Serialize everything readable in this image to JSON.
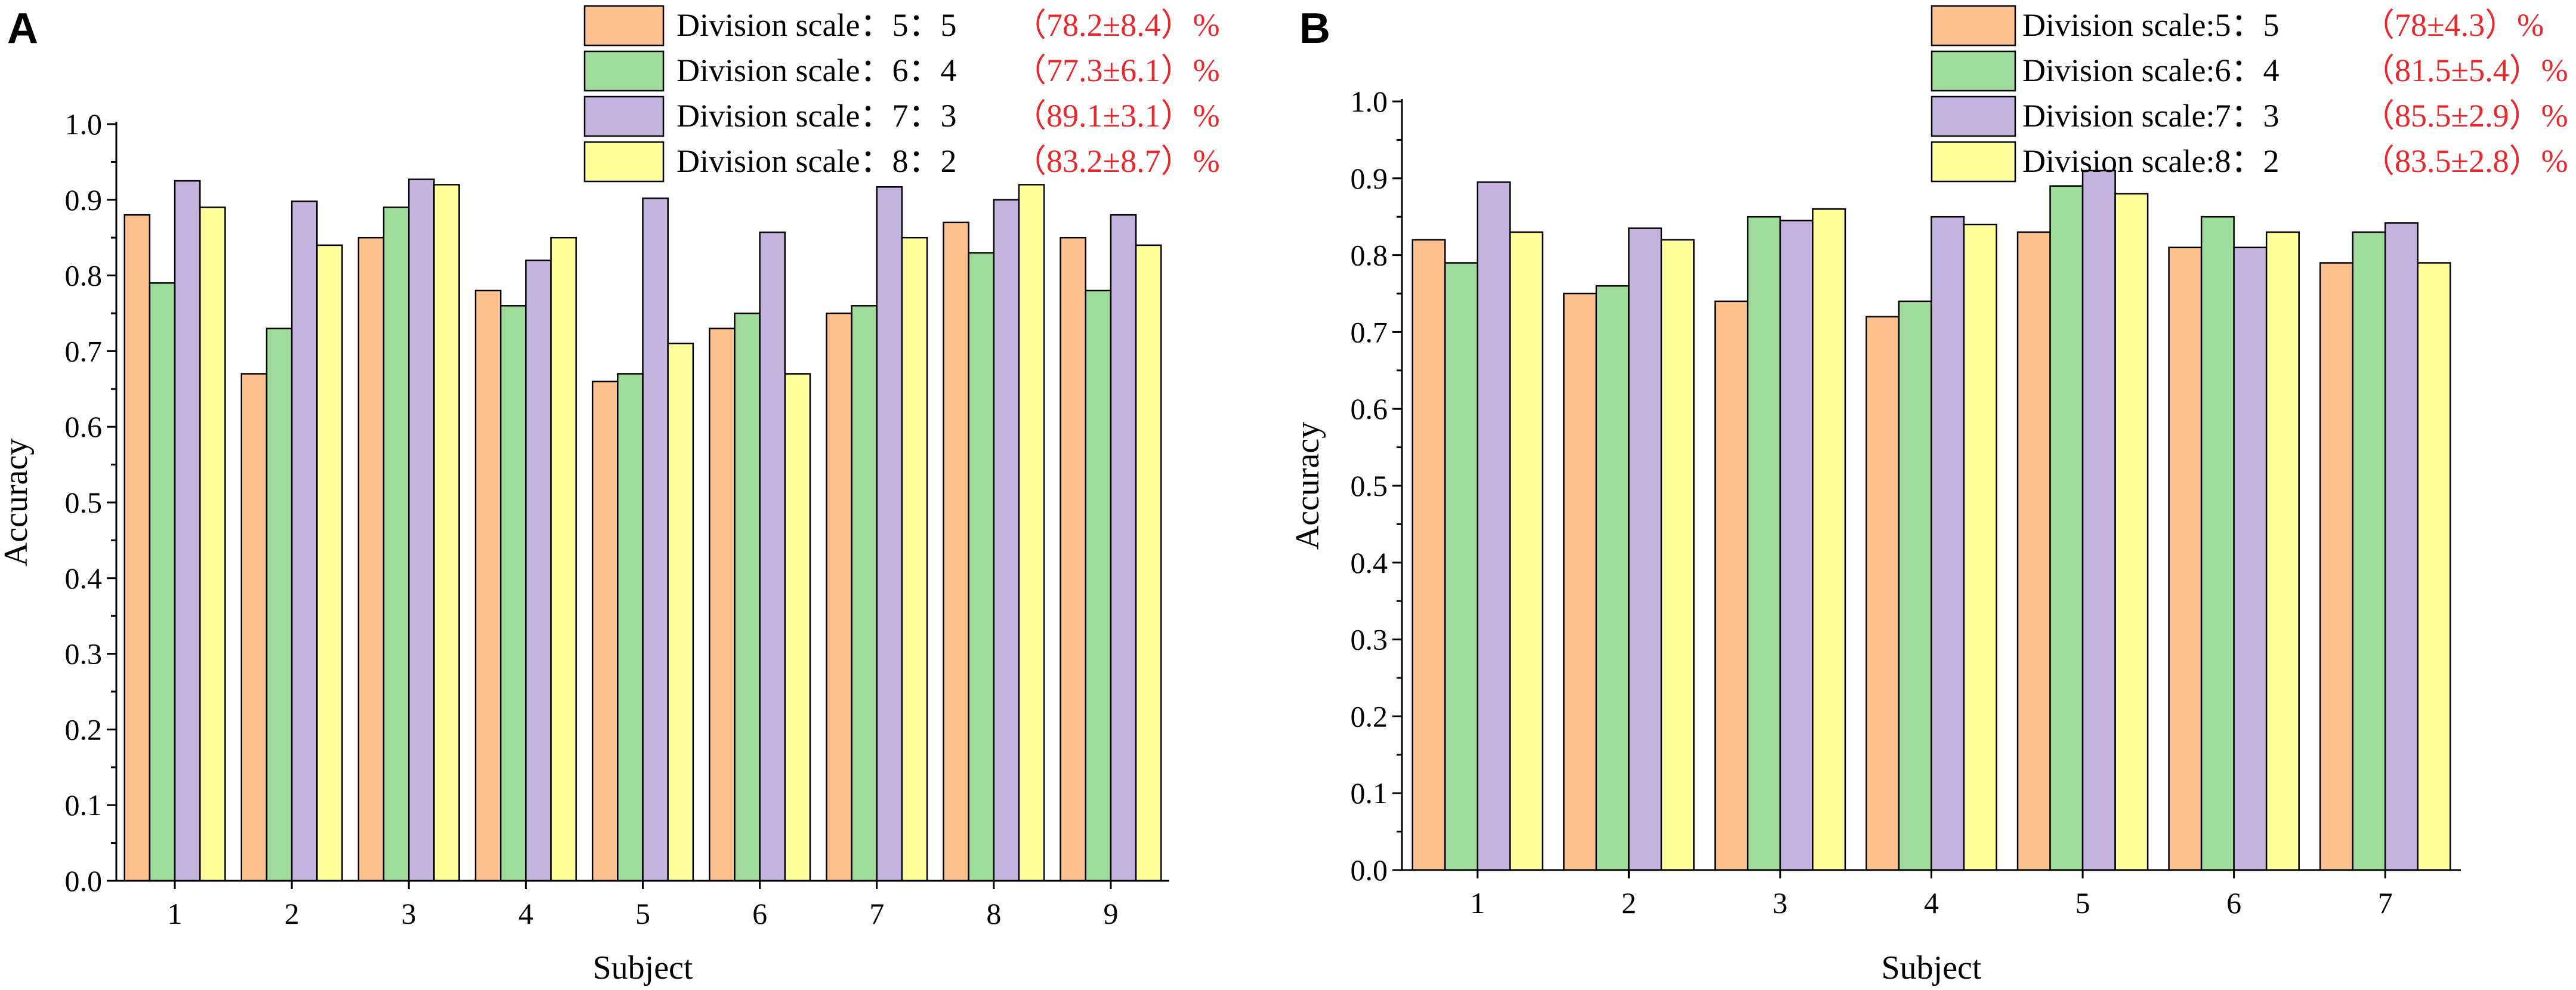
{
  "chart_data": [
    {
      "panel": "A",
      "type": "bar",
      "xlabel": "Subject",
      "ylabel": "Accuracy",
      "ylim": [
        0,
        1.0
      ],
      "yticks": [
        "0.0",
        "0.1",
        "0.2",
        "0.3",
        "0.4",
        "0.5",
        "0.6",
        "0.7",
        "0.8",
        "0.9",
        "1.0"
      ],
      "categories": [
        "1",
        "2",
        "3",
        "4",
        "5",
        "6",
        "7",
        "8",
        "9"
      ],
      "series": [
        {
          "name": "Division scale：5：5",
          "stat": "（78.2±8.4）%",
          "color": "#fdc08f",
          "values": [
            0.88,
            0.67,
            0.85,
            0.78,
            0.66,
            0.73,
            0.75,
            0.87,
            0.85
          ]
        },
        {
          "name": "Division scale：6：4",
          "stat": "（77.3±6.1）%",
          "color": "#9fdb9a",
          "values": [
            0.79,
            0.73,
            0.89,
            0.76,
            0.67,
            0.75,
            0.76,
            0.83,
            0.78
          ]
        },
        {
          "name": "Division scale：7：3",
          "stat": "（89.1±3.1）%",
          "color": "#c3b3de",
          "values": [
            0.925,
            0.898,
            0.927,
            0.82,
            0.902,
            0.857,
            0.917,
            0.9,
            0.88
          ]
        },
        {
          "name": "Division scale：8：2",
          "stat": "（83.2±8.7）%",
          "color": "#ffff9c",
          "values": [
            0.89,
            0.84,
            0.92,
            0.85,
            0.71,
            0.67,
            0.85,
            0.92,
            0.84
          ]
        }
      ]
    },
    {
      "panel": "B",
      "type": "bar",
      "xlabel": "Subject",
      "ylabel": "Accuracy",
      "ylim": [
        0,
        1.0
      ],
      "yticks": [
        "0.0",
        "0.1",
        "0.2",
        "0.3",
        "0.4",
        "0.5",
        "0.6",
        "0.7",
        "0.8",
        "0.9",
        "1.0"
      ],
      "categories": [
        "1",
        "2",
        "3",
        "4",
        "5",
        "6",
        "7"
      ],
      "series": [
        {
          "name": "Division scale:5：5",
          "stat": "（78±4.3）%",
          "color": "#fdc08f",
          "values": [
            0.82,
            0.75,
            0.74,
            0.72,
            0.83,
            0.81,
            0.79
          ]
        },
        {
          "name": "Division scale:6：4",
          "stat": "（81.5±5.4）%",
          "color": "#9fdb9a",
          "values": [
            0.79,
            0.76,
            0.85,
            0.74,
            0.89,
            0.85,
            0.83
          ]
        },
        {
          "name": "Division scale:7：3",
          "stat": "（85.5±2.9）%",
          "color": "#c3b3de",
          "values": [
            0.895,
            0.835,
            0.845,
            0.85,
            0.91,
            0.81,
            0.842
          ]
        },
        {
          "name": "Division scale:8：2",
          "stat": "（83.5±2.8）%",
          "color": "#ffff9c",
          "values": [
            0.83,
            0.82,
            0.86,
            0.84,
            0.88,
            0.83,
            0.79
          ]
        }
      ]
    }
  ]
}
